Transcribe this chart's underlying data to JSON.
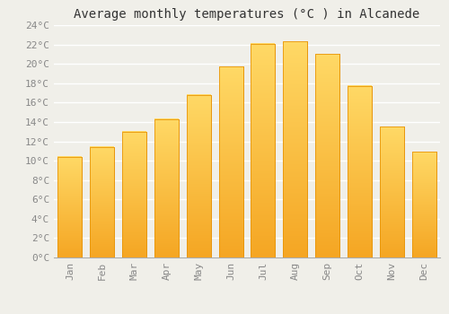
{
  "title": "Average monthly temperatures (°C ) in Alcanede",
  "months": [
    "Jan",
    "Feb",
    "Mar",
    "Apr",
    "May",
    "Jun",
    "Jul",
    "Aug",
    "Sep",
    "Oct",
    "Nov",
    "Dec"
  ],
  "values": [
    10.4,
    11.4,
    13.0,
    14.3,
    16.8,
    19.7,
    22.1,
    22.3,
    21.0,
    17.7,
    13.5,
    10.9
  ],
  "bar_color_bottom": "#F5A623",
  "bar_color_top": "#FFD966",
  "bar_edge_color": "#E8960A",
  "background_color": "#F0EFE9",
  "grid_color": "#FFFFFF",
  "ylim": [
    0,
    24
  ],
  "ytick_step": 2,
  "title_fontsize": 10,
  "tick_fontsize": 8,
  "bar_width": 0.75
}
